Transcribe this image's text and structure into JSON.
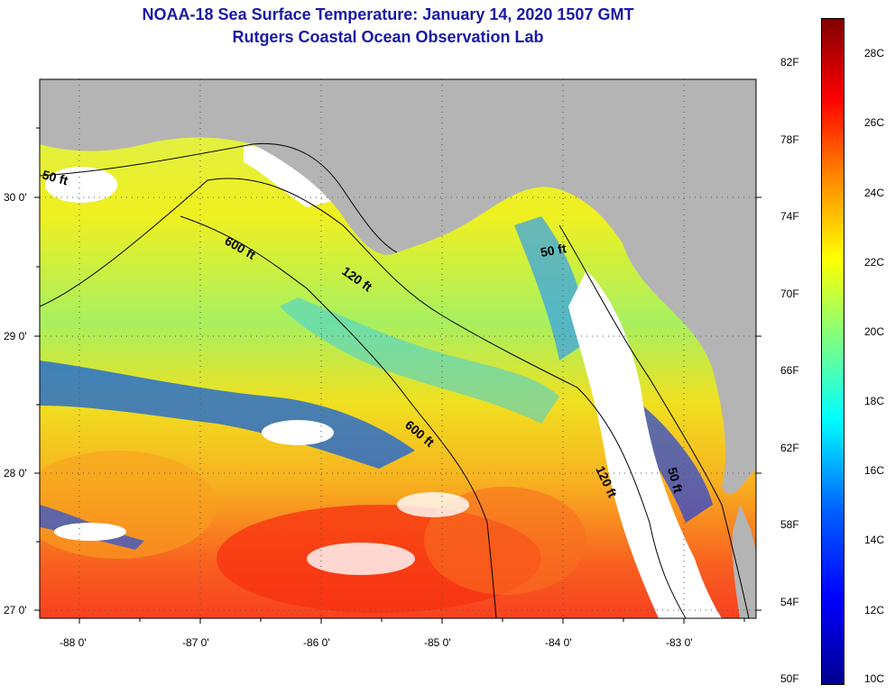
{
  "header": {
    "title": "NOAA-18 Sea Surface Temperature:  January 14, 2020 1507 GMT",
    "subtitle": "Rutgers Coastal Ocean Observation Lab"
  },
  "axes": {
    "x_ticks": [
      "-88 0'",
      "-87 0'",
      "-86 0'",
      "-85 0'",
      "-84 0'",
      "-83 0'"
    ],
    "y_ticks": [
      "30 0'",
      "29 0'",
      "28 0'",
      "27 0'"
    ],
    "x_range": [
      -88.3,
      -82.4
    ],
    "y_range": [
      26.95,
      30.85
    ]
  },
  "contours": {
    "c50_left": "50 ft",
    "c600_upper": "600 ft",
    "c120_mid": "120 ft",
    "c50_right": "50 ft",
    "c600_lower": "600 ft",
    "c120_lower": "120 ft",
    "c50_lower": "50 ft"
  },
  "colorbar": {
    "fahrenheit": [
      "82F",
      "78F",
      "74F",
      "70F",
      "66F",
      "62F",
      "58F",
      "54F",
      "50F"
    ],
    "celsius": [
      "28C",
      "26C",
      "24C",
      "22C",
      "20C",
      "18C",
      "16C",
      "14C",
      "12C",
      "10C"
    ],
    "colors": [
      "#00008f",
      "#0000ff",
      "#0060ff",
      "#00ffff",
      "#80ff80",
      "#ffff00",
      "#ff8000",
      "#ff0000",
      "#800000"
    ]
  },
  "colors": {
    "land": "#b4b4b4",
    "cloud": "#ffffff"
  }
}
